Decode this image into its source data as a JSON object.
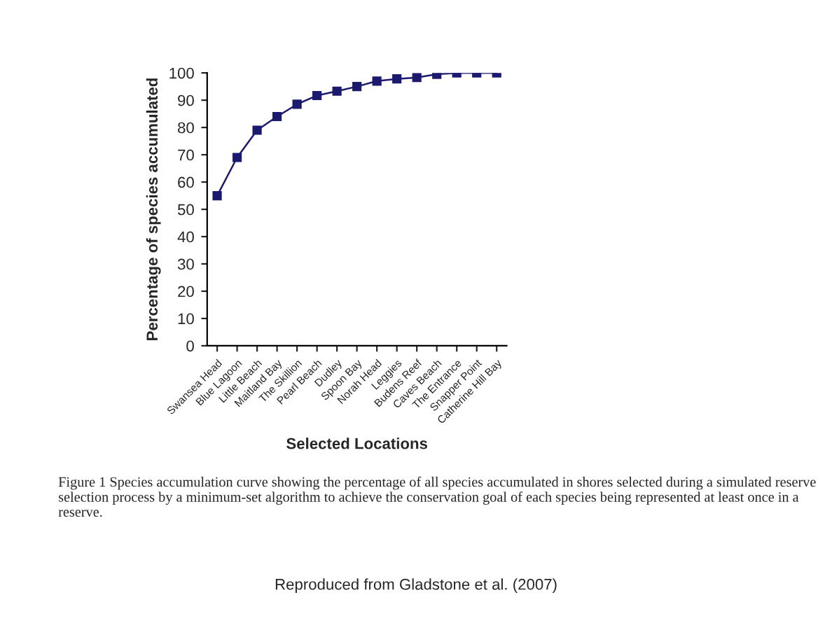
{
  "chart_data": {
    "type": "line",
    "xlabel": "Selected Locations",
    "ylabel": "Percentage of species accumulated",
    "categories": [
      "Swansea Head",
      "Blue Lagoon",
      "Little Beach",
      "Maitland Bay",
      "The Skillion",
      "Pearl Beach",
      "Dudley",
      "Spoon Bay",
      "Norah Head",
      "Leggies",
      "Budens Reef",
      "Caves Beach",
      "The Entrance",
      "Snapper Point",
      "Catherine Hill Bay"
    ],
    "series": [
      {
        "color": "#1c1a6e",
        "values": [
          55,
          69,
          79,
          84,
          88.5,
          91.7,
          93.3,
          95,
          97,
          97.8,
          98.3,
          99.5,
          100,
          100,
          100
        ]
      }
    ],
    "ylim": [
      0,
      100
    ],
    "yticks": [
      0,
      10,
      20,
      30,
      40,
      50,
      60,
      70,
      80,
      90,
      100
    ],
    "grid": false,
    "legend": false,
    "marker": "square",
    "line_style": "solid",
    "annotations": [
      "Figure 1 Species accumulation curve showing the percentage of all species accumulated in shores selected during a simulated reserve selection process by a minimum-set algorithm to achieve the conservation goal of each species being represented at least once in a reserve.",
      "Reproduced from Gladstone et al. (2007)"
    ]
  }
}
